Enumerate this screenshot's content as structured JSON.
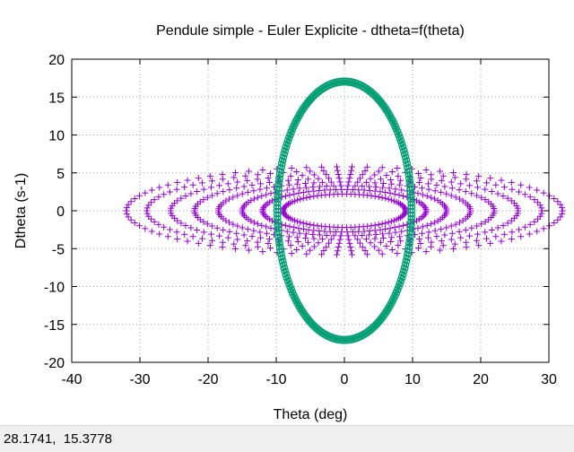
{
  "status_bar": {
    "coordinates": "28.1741,  15.3778"
  },
  "chart_data": {
    "type": "scatter",
    "title": "Pendule simple - Euler Explicite - dtheta=f(theta)",
    "xlabel": "Theta (deg)",
    "ylabel": "Dtheta (s-1)",
    "xlim": [
      -40,
      30
    ],
    "ylim": [
      -20,
      20
    ],
    "x_ticks": [
      -40,
      -30,
      -20,
      -10,
      0,
      10,
      20,
      30
    ],
    "y_ticks": [
      -20,
      -15,
      -10,
      -5,
      0,
      5,
      10,
      15,
      20
    ],
    "grid": true,
    "legend": "none",
    "series": [
      {
        "marker": "plus",
        "color": "#9400d3",
        "description_points": "spiral of ellipses centered at origin",
        "ellipses": [
          {
            "theta_amp": 32.0,
            "dtheta_amp": 5.8
          },
          {
            "theta_amp": 29.0,
            "dtheta_amp": 5.3
          },
          {
            "theta_amp": 25.5,
            "dtheta_amp": 4.8
          },
          {
            "theta_amp": 22.0,
            "dtheta_amp": 4.3
          },
          {
            "theta_amp": 18.5,
            "dtheta_amp": 3.8
          },
          {
            "theta_amp": 15.0,
            "dtheta_amp": 3.3
          },
          {
            "theta_amp": 12.0,
            "dtheta_amp": 2.8
          },
          {
            "theta_amp": 9.0,
            "dtheta_amp": 2.2
          }
        ]
      },
      {
        "marker": "circle",
        "color": "#009e73",
        "ellipses": [
          {
            "theta_amp": 10.0,
            "dtheta_amp": 17.2
          },
          {
            "theta_amp": 9.7,
            "dtheta_amp": 16.9
          }
        ]
      }
    ]
  }
}
